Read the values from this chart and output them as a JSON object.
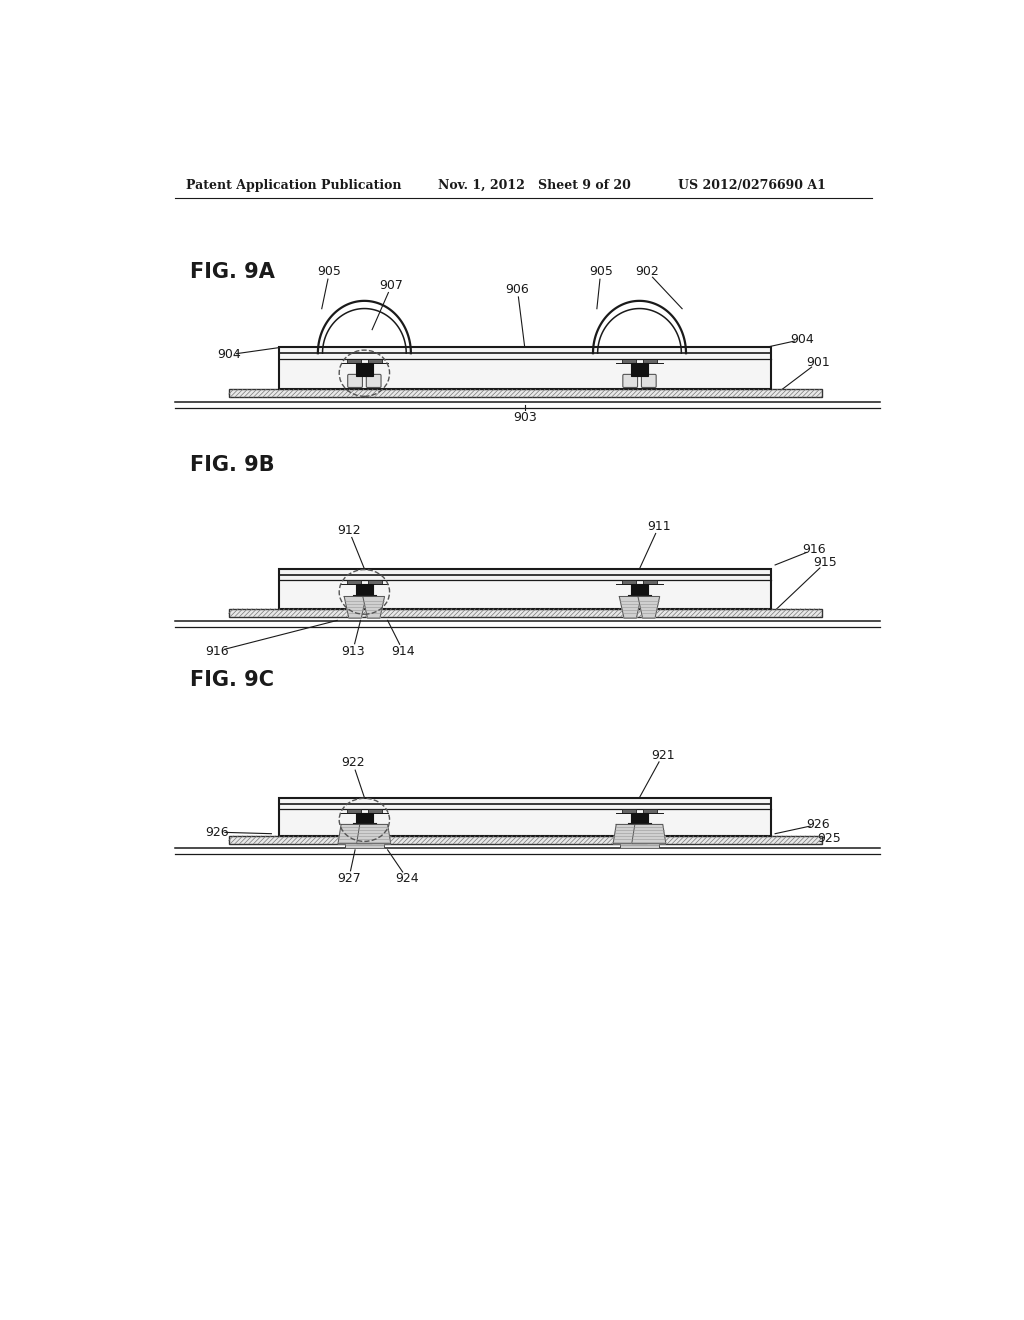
{
  "bg_color": "#ffffff",
  "header_left": "Patent Application Publication",
  "header_mid": "Nov. 1, 2012   Sheet 9 of 20",
  "header_right": "US 2012/0276690 A1",
  "fig9a_label": "FIG. 9A",
  "fig9b_label": "FIG. 9B",
  "fig9c_label": "FIG. 9C",
  "line_color": "#1a1a1a",
  "label_color": "#1a1a1a"
}
